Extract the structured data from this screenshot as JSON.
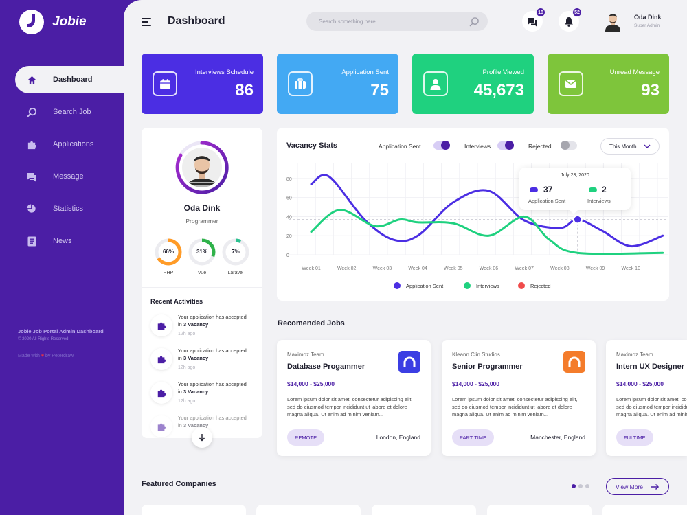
{
  "brand": {
    "name": "Jobie"
  },
  "sidebar": {
    "items": [
      {
        "label": "Dashboard",
        "icon": "home-icon",
        "active": true
      },
      {
        "label": "Search Job",
        "icon": "search-icon"
      },
      {
        "label": "Applications",
        "icon": "puzzle-icon"
      },
      {
        "label": "Message",
        "icon": "chat-icon"
      },
      {
        "label": "Statistics",
        "icon": "pie-chart-icon"
      },
      {
        "label": "News",
        "icon": "news-icon"
      }
    ],
    "footer": {
      "title": "Jobie Job Portal Admin Dashboard",
      "copyright": "© 2020 All Rights Reserved",
      "made_prefix": "Made with",
      "made_suffix": "by Peterdraw"
    }
  },
  "header": {
    "title": "Dashboard",
    "search_placeholder": "Search something here...",
    "messages_count": "18",
    "notifications_count": "52",
    "user": {
      "name": "Oda Dink",
      "role": "Super Admin"
    }
  },
  "stats": [
    {
      "label": "Interviews Schedule",
      "value": "86",
      "color": "#4b2ee3",
      "icon": "calendar-icon"
    },
    {
      "label": "Application Sent",
      "value": "75",
      "color": "#43a9f3",
      "icon": "briefcase-icon"
    },
    {
      "label": "Profile Viewed",
      "value": "45,673",
      "color": "#1fd17f",
      "icon": "user-icon"
    },
    {
      "label": "Unread Message",
      "value": "93",
      "color": "#7ec53b",
      "icon": "mail-icon"
    }
  ],
  "profile": {
    "name": "Oda Dink",
    "role": "Programmer",
    "skills": [
      {
        "name": "PHP",
        "percent": 66,
        "label": "66%",
        "color": "#ff9b27"
      },
      {
        "name": "Vue",
        "percent": 31,
        "label": "31%",
        "color": "#2fb24a"
      },
      {
        "name": "Laravel",
        "percent": 7,
        "label": "7%",
        "color": "#2bc08f"
      }
    ],
    "recent_title": "Recent Activities",
    "activities": [
      {
        "text": "Your application has accepted in",
        "bold": "3 Vacancy",
        "time": "12h ago"
      },
      {
        "text": "Your application has accepted in",
        "bold": "3 Vacancy",
        "time": "12h ago"
      },
      {
        "text": "Your application has accepted in",
        "bold": "3 Vacancy",
        "time": "12h ago"
      },
      {
        "text": "Your application has accepted in",
        "bold": "3 Vacancy",
        "time": ""
      }
    ]
  },
  "vacancy": {
    "title": "Vacancy Stats",
    "toggles": [
      {
        "label": "Application Sent",
        "on": true
      },
      {
        "label": "Interviews",
        "on": true
      },
      {
        "label": "Rejected",
        "on": false
      }
    ],
    "period": "This Month",
    "tooltip": {
      "date": "July 23, 2020",
      "application_value": "37",
      "application_label": "Application Sent",
      "interviews_value": "2",
      "interviews_label": "Interviews"
    }
  },
  "chart_data": {
    "type": "line",
    "categories": [
      "Week 01",
      "Week 02",
      "Week 03",
      "Week 04",
      "Week 05",
      "Week 06",
      "Week 07",
      "Week 08",
      "Week 09",
      "Week 10"
    ],
    "yticks": [
      0,
      20,
      40,
      60,
      80
    ],
    "ylim": [
      0,
      90
    ],
    "legend_position": "bottom",
    "series": [
      {
        "name": "Application Sent",
        "color": "#4b2ee3",
        "points": [
          [
            0,
            74
          ],
          [
            0.5,
            82
          ],
          [
            1.5,
            37
          ],
          [
            2.3,
            16
          ],
          [
            3,
            20
          ],
          [
            4,
            55
          ],
          [
            5,
            67
          ],
          [
            6,
            36
          ],
          [
            7,
            28
          ],
          [
            7.5,
            37
          ],
          [
            8.2,
            25
          ],
          [
            9,
            9
          ],
          [
            9.9,
            20
          ]
        ]
      },
      {
        "name": "Interviews",
        "color": "#1fd17f",
        "points": [
          [
            0,
            24
          ],
          [
            0.8,
            47
          ],
          [
            1.8,
            30
          ],
          [
            2.5,
            37
          ],
          [
            3,
            34
          ],
          [
            4,
            33
          ],
          [
            5,
            20
          ],
          [
            6,
            40
          ],
          [
            6.7,
            16
          ],
          [
            7.5,
            2
          ],
          [
            9.9,
            2
          ]
        ]
      },
      {
        "name": "Rejected",
        "color": "#f04b4b",
        "points": []
      }
    ],
    "marker": {
      "x": 7.5,
      "y": 37
    }
  },
  "jobs": {
    "title": "Recomended Jobs",
    "items": [
      {
        "company": "Maximoz Team",
        "title": "Database Progammer",
        "salary": "$14,000 - $25,000",
        "desc": "Lorem ipsum dolor sit amet, consectetur adipiscing elit, sed do eiusmod tempor incididunt ut labore et dolore magna aliqua. Ut enim ad minim veniam...",
        "tag": "REMOTE",
        "location": "London, England",
        "logo_color": "#3b3ee3"
      },
      {
        "company": "Kleann Clin Studios",
        "title": "Senior Programmer",
        "salary": "$14,000 - $25,000",
        "desc": "Lorem ipsum dolor sit amet, consectetur adipiscing elit, sed do eiusmod tempor incididunt ut labore et dolore magna aliqua. Ut enim ad minim veniam...",
        "tag": "PART TIME",
        "location": "Manchester, England",
        "logo_color": "#f47c2b"
      },
      {
        "company": "Maximoz Team",
        "title": "Intern UX Designer",
        "salary": "$14,000 - $25,000",
        "desc": "Lorem ipsum dolor sit amet, consectetur adipiscing elit, sed do eiusmod tempor incididunt ut labore et dolore magna aliqua. Ut enim ad minim veniam...",
        "tag": "FULTIME",
        "location": "",
        "logo_color": "#3b3ee3"
      }
    ]
  },
  "featured": {
    "title": "Featured Companies",
    "view_more": "View More"
  }
}
